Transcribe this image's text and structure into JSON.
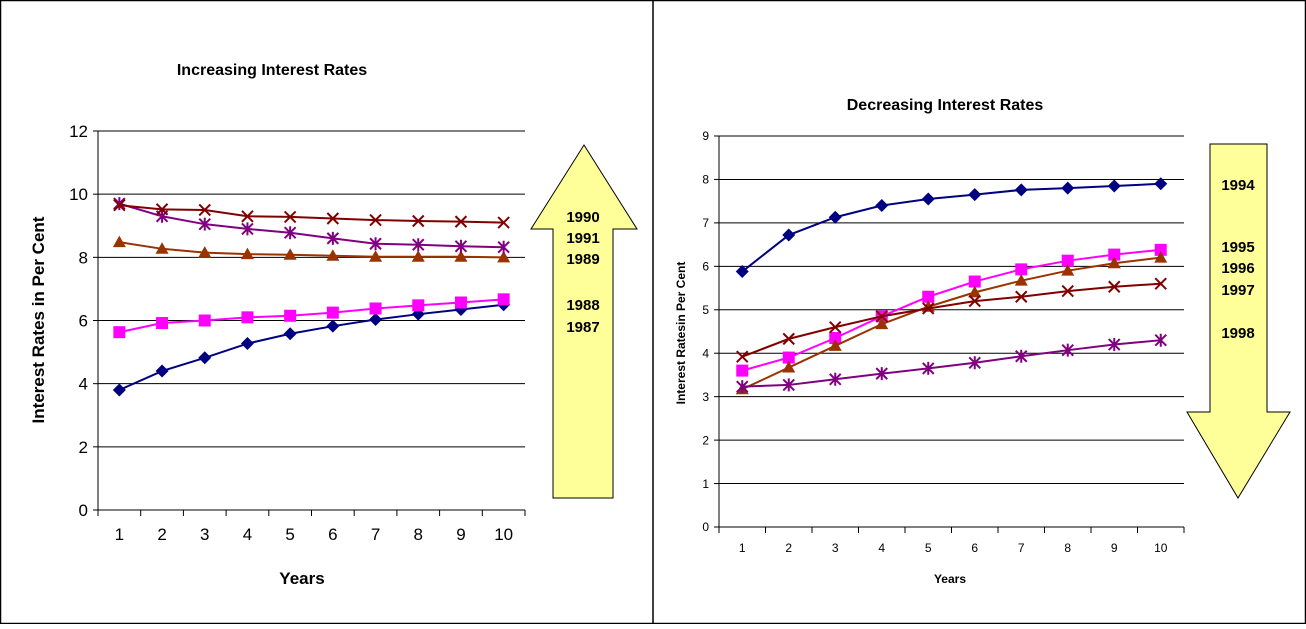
{
  "chart_data": [
    {
      "type": "line",
      "title": "Increasing Interest Rates",
      "xlabel": "Years",
      "ylabel": "Interest Rates in Per Cent",
      "x": [
        1,
        2,
        3,
        4,
        5,
        6,
        7,
        8,
        9,
        10
      ],
      "ylim": [
        0,
        12
      ],
      "yticks": [
        0,
        2,
        4,
        6,
        8,
        10,
        12
      ],
      "grid": true,
      "arrow": {
        "direction": "up",
        "color": "#FFFF99",
        "labels": [
          "1990",
          "1991",
          "1989",
          "1988",
          "1987"
        ]
      },
      "series": [
        {
          "values": [
            3.8,
            4.4,
            4.82,
            5.27,
            5.58,
            5.82,
            6.03,
            6.2,
            6.35,
            6.5
          ],
          "color": "#000080",
          "marker": "diamond"
        },
        {
          "values": [
            5.63,
            5.92,
            6.0,
            6.1,
            6.15,
            6.25,
            6.38,
            6.48,
            6.57,
            6.67
          ],
          "color": "#FF00FF",
          "marker": "square"
        },
        {
          "values": [
            8.48,
            8.27,
            8.15,
            8.1,
            8.08,
            8.05,
            8.02,
            8.02,
            8.02,
            8.0
          ],
          "color": "#993300",
          "marker": "triangle"
        },
        {
          "values": [
            9.7,
            9.3,
            9.05,
            8.9,
            8.78,
            8.6,
            8.43,
            8.4,
            8.35,
            8.32
          ],
          "color": "#800080",
          "marker": "star"
        },
        {
          "values": [
            9.65,
            9.52,
            9.5,
            9.3,
            9.28,
            9.23,
            9.18,
            9.15,
            9.13,
            9.1
          ],
          "color": "#800000",
          "marker": "x"
        }
      ]
    },
    {
      "type": "line",
      "title": "Decreasing Interest Rates",
      "xlabel": "Years",
      "ylabel": "Interest Ratesin Per Cent",
      "x": [
        1,
        2,
        3,
        4,
        5,
        6,
        7,
        8,
        9,
        10
      ],
      "ylim": [
        0,
        9
      ],
      "yticks": [
        0,
        1,
        2,
        3,
        4,
        5,
        6,
        7,
        8,
        9
      ],
      "grid": true,
      "arrow": {
        "direction": "down",
        "color": "#FFFF99",
        "labels": [
          "1994",
          "1995",
          "1996",
          "1997",
          "1998"
        ]
      },
      "series": [
        {
          "values": [
            5.88,
            6.72,
            7.13,
            7.4,
            7.55,
            7.65,
            7.76,
            7.8,
            7.85,
            7.9
          ],
          "color": "#000080",
          "marker": "diamond"
        },
        {
          "values": [
            3.6,
            3.9,
            4.35,
            4.85,
            5.3,
            5.65,
            5.93,
            6.13,
            6.27,
            6.38
          ],
          "color": "#FF00FF",
          "marker": "square"
        },
        {
          "values": [
            3.17,
            3.67,
            4.17,
            4.67,
            5.07,
            5.4,
            5.67,
            5.9,
            6.07,
            6.2
          ],
          "color": "#993300",
          "marker": "triangle"
        },
        {
          "values": [
            3.92,
            4.33,
            4.6,
            4.85,
            5.03,
            5.2,
            5.3,
            5.43,
            5.53,
            5.6
          ],
          "color": "#800000",
          "marker": "x"
        },
        {
          "values": [
            3.23,
            3.27,
            3.4,
            3.53,
            3.65,
            3.78,
            3.93,
            4.07,
            4.2,
            4.3
          ],
          "color": "#800080",
          "marker": "star"
        }
      ]
    }
  ]
}
